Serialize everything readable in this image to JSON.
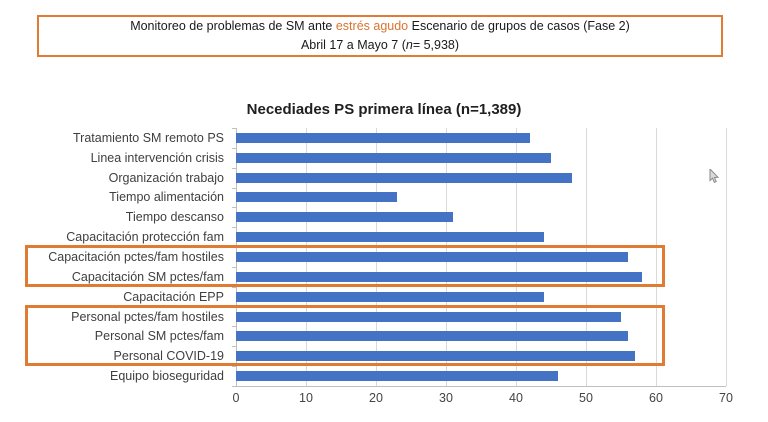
{
  "header": {
    "line1_before": "Monitoreo de problemas de SM ante ",
    "line1_highlight": "estrés agudo",
    "line1_after": " Escenario de grupos de casos (Fase 2)",
    "line2_prefix": "Abril 17 a Mayo 7 (",
    "line2_italic_n": "n",
    "line2_suffix": "= 5,938)"
  },
  "chart_data": {
    "type": "bar",
    "orientation": "horizontal",
    "title": "Necediades PS primera línea (n=1,389)",
    "categories": [
      "Tratamiento SM remoto PS",
      "Linea intervención crisis",
      "Organización trabajo",
      "Tiempo alimentación",
      "Tiempo descanso",
      "Capacitación protección fam",
      "Capacitación pctes/fam hostiles",
      "Capacitación SM pctes/fam",
      "Capacitación EPP",
      "Personal pctes/fam hostiles",
      "Personal SM pctes/fam",
      "Personal COVID-19",
      "Equipo bioseguridad"
    ],
    "values": [
      42,
      45,
      48,
      23,
      31,
      44,
      56,
      58,
      44,
      55,
      56,
      57,
      46
    ],
    "xlabel": "",
    "ylabel": "",
    "xlim": [
      0,
      70
    ],
    "x_ticks": [
      0,
      10,
      20,
      30,
      40,
      50,
      60,
      70
    ],
    "grid": "vertical",
    "legend": "none",
    "bar_color": "#4472C4",
    "highlight_groups": [
      {
        "name": "highlight-box-capacitacion",
        "start_row": 6,
        "end_row": 7
      },
      {
        "name": "highlight-box-personal",
        "start_row": 9,
        "end_row": 11
      }
    ]
  },
  "colors": {
    "bar_blue": "#4472C4",
    "accent_orange": "#DF7B33",
    "gridline_gray": "#D9D9D9",
    "axis_gray": "#BFBFBF"
  },
  "cursor": {
    "present": "true"
  }
}
